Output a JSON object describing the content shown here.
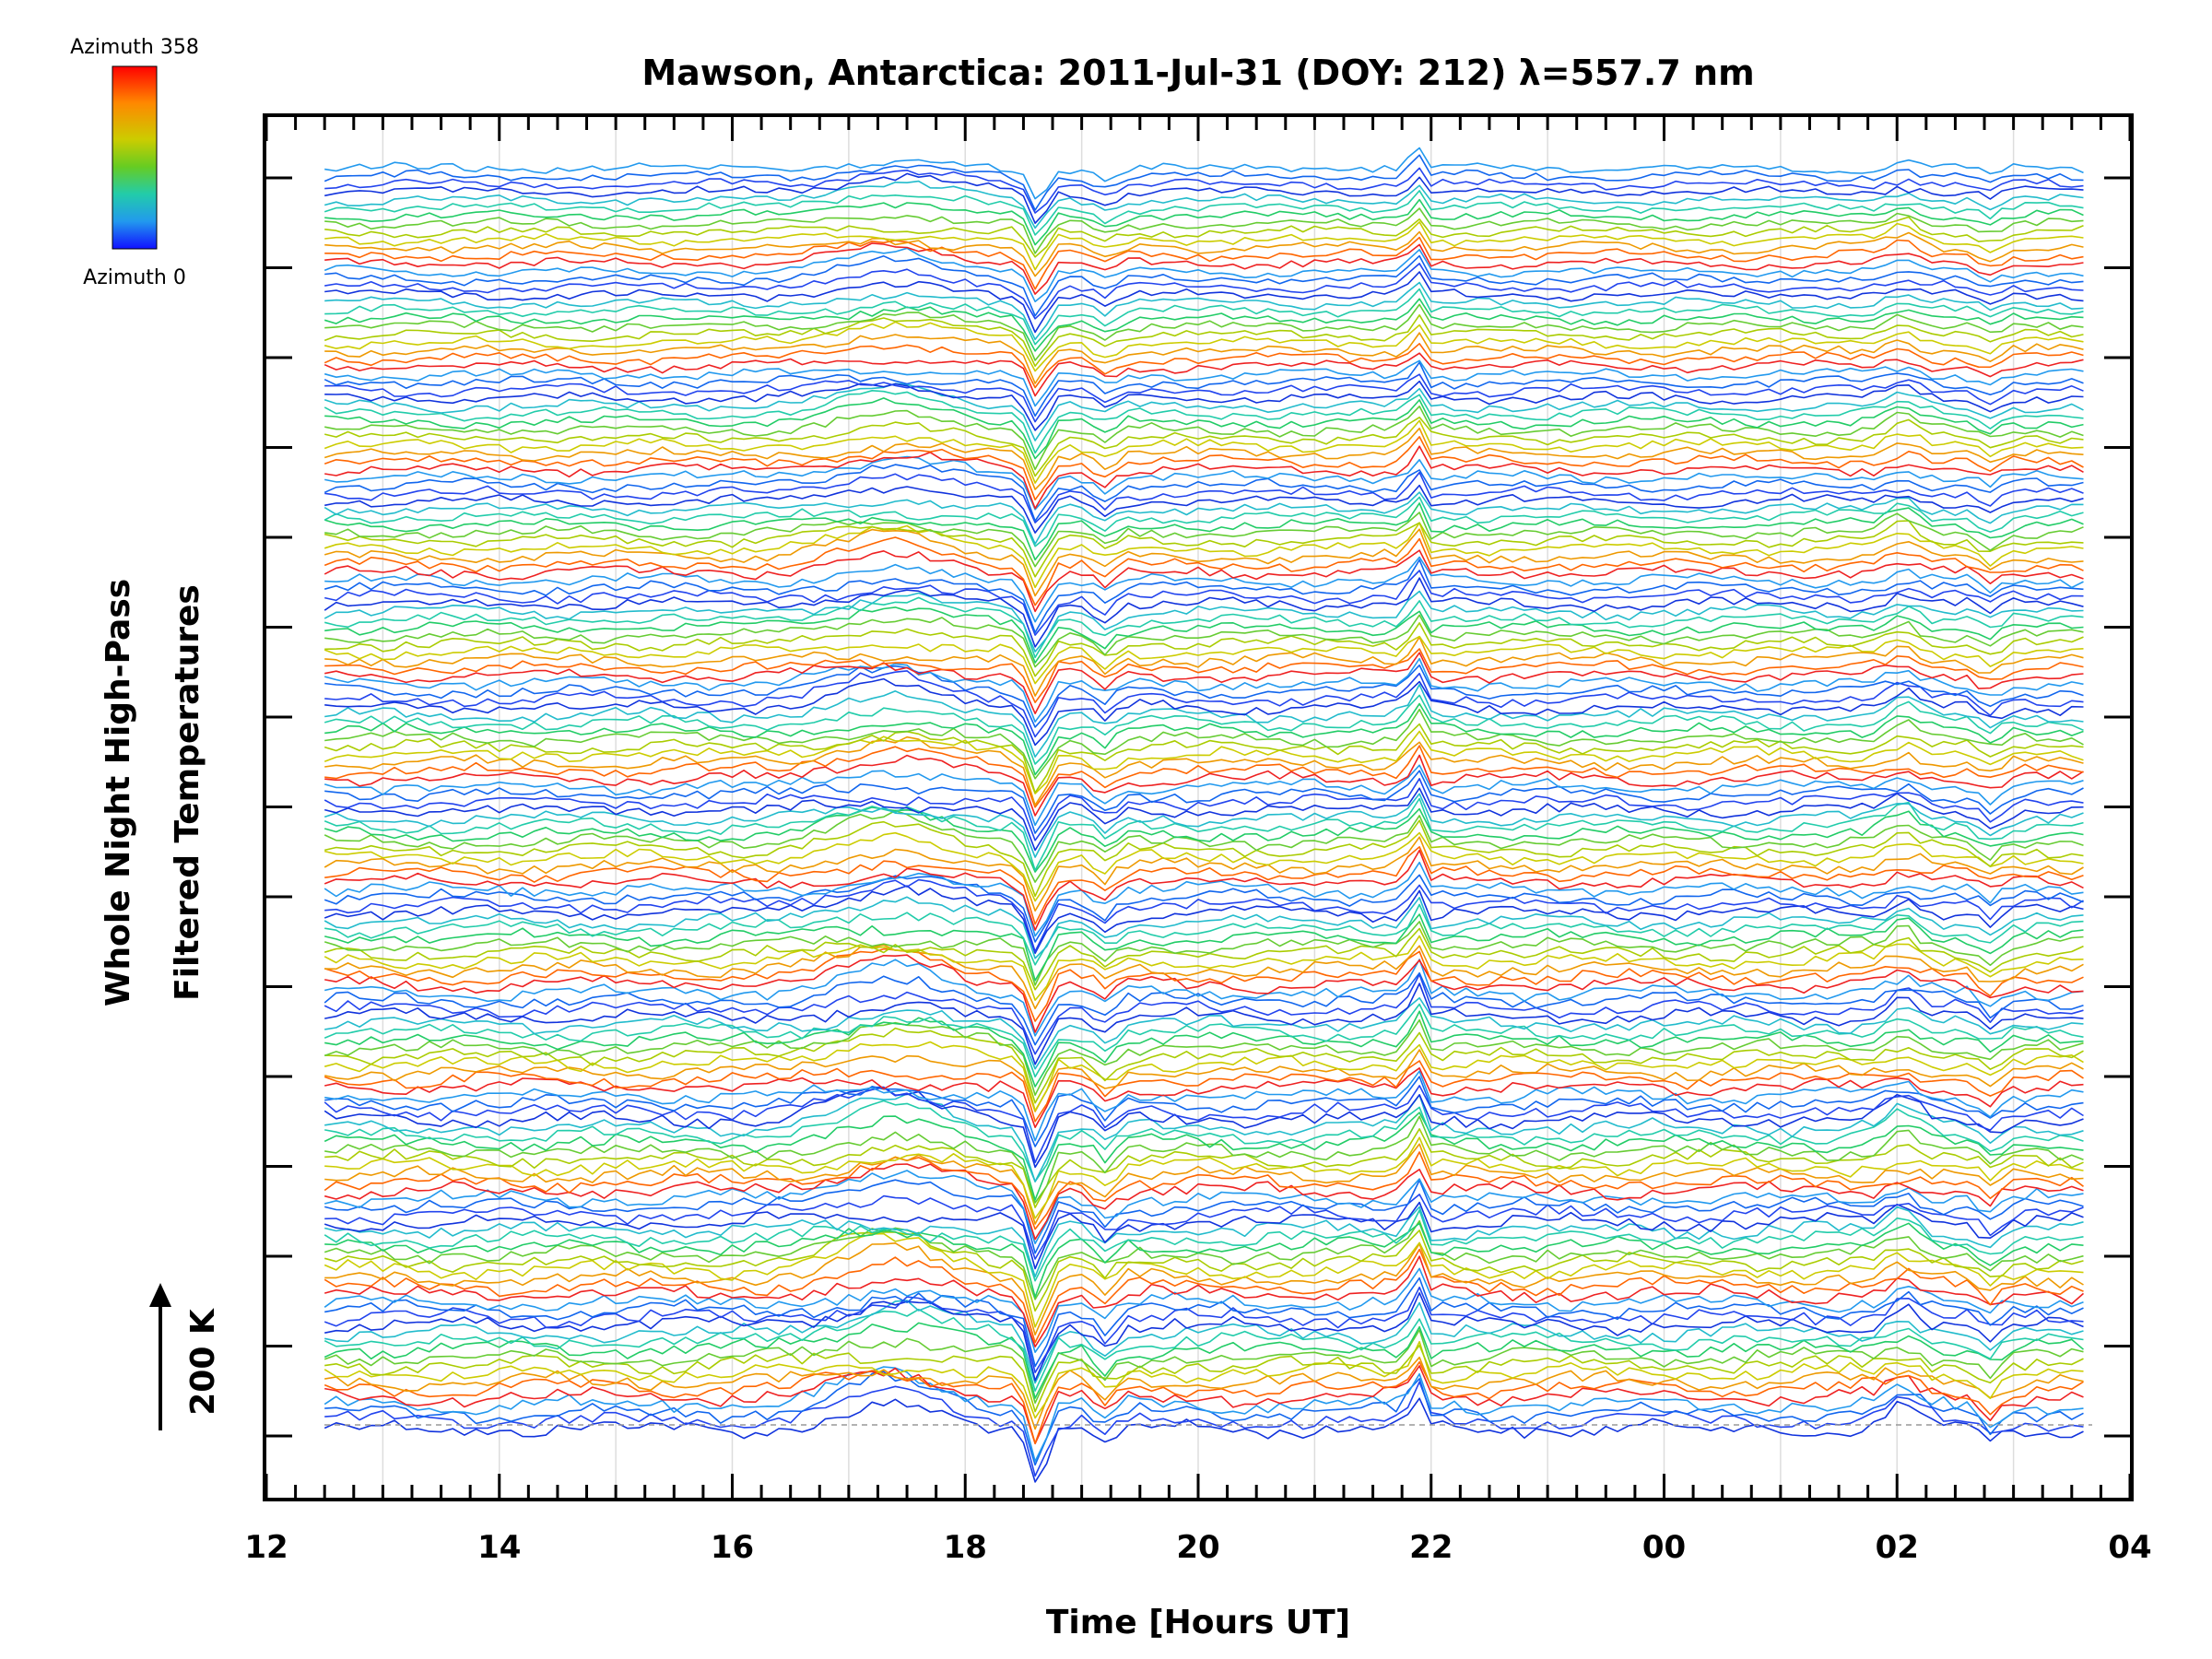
{
  "chart_data": {
    "type": "line",
    "title": "Mawson, Antarctica: 2011-Jul-31 (DOY: 212) λ=557.7 nm",
    "xlabel": "Time [Hours UT]",
    "ylabel_lines": [
      "Whole Night High-Pass",
      "Filtered Temperatures"
    ],
    "scale_bar_label": "200 K",
    "x_ticks": [
      "12",
      "14",
      "16",
      "18",
      "20",
      "22",
      "00",
      "02",
      "04"
    ],
    "xlim": [
      12,
      28
    ],
    "x_range": [
      12.5,
      27.6
    ],
    "grid": true,
    "colorbar": {
      "top_label": "Azimuth 358",
      "bottom_label": "Azimuth 0",
      "colors": [
        "#ff0000",
        "#ff8800",
        "#cccc00",
        "#66cc22",
        "#22ccaa",
        "#2299ee",
        "#1111ff"
      ]
    },
    "legend_placement": "top-left",
    "series_count": 160,
    "azimuth_colors_cycle": [
      "#1133dd",
      "#2244ee",
      "#1166ee",
      "#2299ee",
      "#ee2222",
      "#ff6600",
      "#ee9900",
      "#cccc00",
      "#aacc00",
      "#66cc33",
      "#22cc66",
      "#22ccaa",
      "#22bbcc"
    ],
    "events": [
      {
        "time": 17.4,
        "kind": "warm bump"
      },
      {
        "time": 18.6,
        "kind": "sharp dip"
      },
      {
        "time": 19.2,
        "kind": "dip"
      },
      {
        "time": 21.9,
        "kind": "sharp spike"
      },
      {
        "time": 26.05,
        "kind": "spike"
      },
      {
        "time": 26.8,
        "kind": "dip"
      }
    ]
  }
}
